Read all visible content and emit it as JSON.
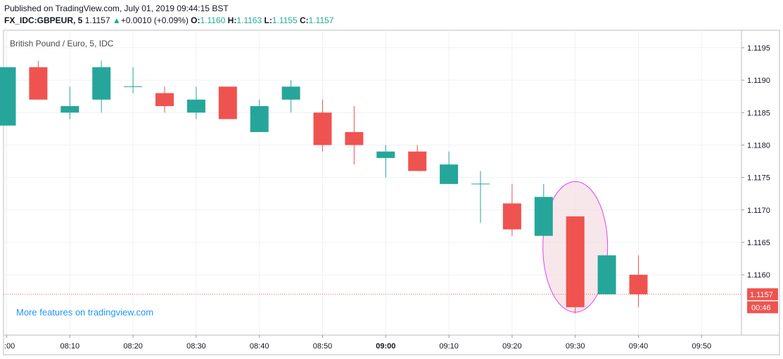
{
  "header": {
    "published": "Published on TradingView.com, July 01, 2019 09:44:15 BST",
    "symbol": "FX_IDC:GBPEUR, 5",
    "last": "1.1157",
    "change": "+0.0010 (+0.09%)",
    "o_label": "O:",
    "o_value": "1.1160",
    "h_label": "H:",
    "h_value": "1.1163",
    "l_label": "L:",
    "l_value": "1.1155",
    "c_label": "C:",
    "c_value": "1.1157"
  },
  "promo": "More features on tradingview.com",
  "colors": {
    "up": "#26a69a",
    "down": "#ef5350",
    "ellipse_stroke": "#e040fb",
    "ellipse_fill": "#f3dde3"
  },
  "chart_data": {
    "type": "candlestick",
    "title": "British Pound / Euro, 5, IDC",
    "x_tick_labels": [
      ":00",
      "08:10",
      "08:20",
      "08:30",
      "08:40",
      "08:50",
      "09:00",
      "09:10",
      "09:20",
      "09:30",
      "09:40",
      "09:50"
    ],
    "y_tick_labels": [
      "1.1195",
      "1.1190",
      "1.1185",
      "1.1180",
      "1.1175",
      "1.1170",
      "1.1165",
      "1.1160"
    ],
    "ylim": [
      1.11507,
      1.11977
    ],
    "y_ticks": [
      1.1195,
      1.119,
      1.1185,
      1.118,
      1.1175,
      1.117,
      1.1165,
      1.116
    ],
    "current_price": 1.1157,
    "current_price_label": "1.1157",
    "countdown_label": "00:46",
    "grid": true,
    "candles": [
      {
        "time": "08:00",
        "o": 1.1183,
        "h": 1.1192,
        "l": 1.1183,
        "c": 1.1192
      },
      {
        "time": "08:05",
        "o": 1.1192,
        "h": 1.1193,
        "l": 1.1187,
        "c": 1.1187
      },
      {
        "time": "08:10",
        "o": 1.1185,
        "h": 1.1189,
        "l": 1.1184,
        "c": 1.1186
      },
      {
        "time": "08:15",
        "o": 1.1187,
        "h": 1.1193,
        "l": 1.1185,
        "c": 1.1192
      },
      {
        "time": "08:20",
        "o": 1.1189,
        "h": 1.1192,
        "l": 1.1188,
        "c": 1.1189
      },
      {
        "time": "08:25",
        "o": 1.1188,
        "h": 1.1189,
        "l": 1.1185,
        "c": 1.1186
      },
      {
        "time": "08:30",
        "o": 1.1185,
        "h": 1.1189,
        "l": 1.1184,
        "c": 1.1187
      },
      {
        "time": "08:35",
        "o": 1.1189,
        "h": 1.1189,
        "l": 1.1184,
        "c": 1.1184
      },
      {
        "time": "08:40",
        "o": 1.1182,
        "h": 1.1187,
        "l": 1.1182,
        "c": 1.1186
      },
      {
        "time": "08:45",
        "o": 1.1187,
        "h": 1.119,
        "l": 1.1185,
        "c": 1.1189
      },
      {
        "time": "08:50",
        "o": 1.1185,
        "h": 1.1187,
        "l": 1.1179,
        "c": 1.118
      },
      {
        "time": "08:55",
        "o": 1.1182,
        "h": 1.1186,
        "l": 1.1177,
        "c": 1.118
      },
      {
        "time": "09:00",
        "o": 1.1178,
        "h": 1.118,
        "l": 1.1175,
        "c": 1.1179
      },
      {
        "time": "09:05",
        "o": 1.1179,
        "h": 1.118,
        "l": 1.1176,
        "c": 1.1176
      },
      {
        "time": "09:10",
        "o": 1.1174,
        "h": 1.1179,
        "l": 1.1174,
        "c": 1.1177
      },
      {
        "time": "09:15",
        "o": 1.1174,
        "h": 1.1176,
        "l": 1.1168,
        "c": 1.1174
      },
      {
        "time": "09:20",
        "o": 1.1171,
        "h": 1.1174,
        "l": 1.1166,
        "c": 1.1167
      },
      {
        "time": "09:25",
        "o": 1.1166,
        "h": 1.1174,
        "l": 1.1166,
        "c": 1.1172
      },
      {
        "time": "09:30",
        "o": 1.1169,
        "h": 1.1169,
        "l": 1.1154,
        "c": 1.1155
      },
      {
        "time": "09:35",
        "o": 1.1157,
        "h": 1.1163,
        "l": 1.1157,
        "c": 1.1163
      },
      {
        "time": "09:40",
        "o": 1.116,
        "h": 1.1163,
        "l": 1.1155,
        "c": 1.1157
      }
    ]
  }
}
